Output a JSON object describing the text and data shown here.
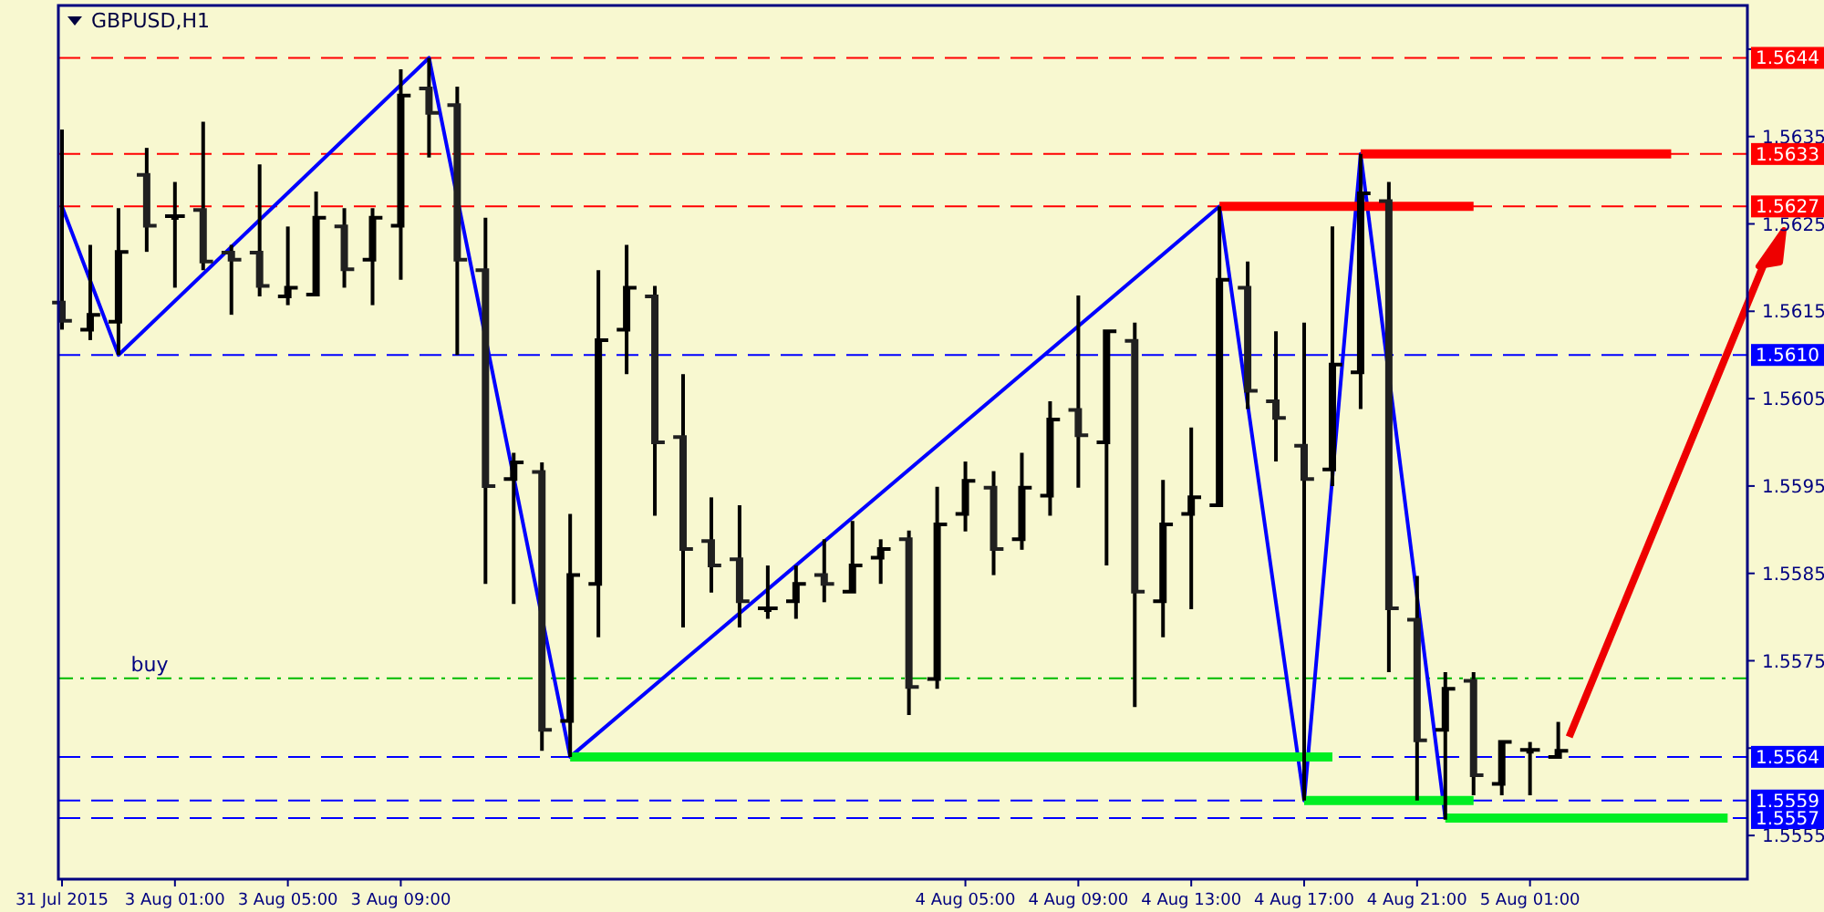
{
  "chart_data": {
    "type": "candlestick",
    "title": "GBPUSD,H1",
    "categories": [
      "31 Jul 2015",
      null,
      null,
      null,
      "3 Aug 01:00",
      null,
      null,
      null,
      "3 Aug 05:00",
      null,
      null,
      null,
      "3 Aug 09:00",
      null,
      null,
      null,
      null,
      null,
      null,
      null,
      null,
      null,
      null,
      null,
      null,
      null,
      null,
      null,
      null,
      null,
      null,
      null,
      "4 Aug 05:00",
      null,
      null,
      null,
      "4 Aug 09:00",
      null,
      null,
      null,
      "4 Aug 13:00",
      null,
      null,
      null,
      "4 Aug 17:00",
      null,
      null,
      null,
      "4 Aug 21:00",
      null,
      null,
      null,
      "5 Aug 01:00",
      null,
      null,
      null,
      null,
      null,
      null,
      null
    ],
    "ohlc": [
      [
        1.5616,
        1.56358,
        1.56129,
        1.56139
      ],
      [
        1.56129,
        1.56226,
        1.56117,
        1.56146
      ],
      [
        1.56138,
        1.56268,
        1.561,
        1.56218
      ],
      [
        1.56306,
        1.56337,
        1.56218,
        1.56248
      ],
      [
        1.56259,
        1.56298,
        1.56177,
        1.56259
      ],
      [
        1.56266,
        1.56367,
        1.56197,
        1.56207
      ],
      [
        1.56217,
        1.56226,
        1.56146,
        1.56209
      ],
      [
        1.56217,
        1.56318,
        1.56167,
        1.56179
      ],
      [
        1.56167,
        1.56247,
        1.56157,
        1.56177
      ],
      [
        1.56169,
        1.56287,
        1.56169,
        1.56257
      ],
      [
        1.56247,
        1.56268,
        1.56177,
        1.56198
      ],
      [
        1.56209,
        1.56268,
        1.56157,
        1.56257
      ],
      [
        1.56248,
        1.56427,
        1.56186,
        1.56397
      ],
      [
        1.56405,
        1.5644,
        1.56326,
        1.56377
      ],
      [
        1.56386,
        1.56407,
        1.561,
        1.56209
      ],
      [
        1.56197,
        1.56257,
        1.55838,
        1.5595
      ],
      [
        1.55958,
        1.55988,
        1.55815,
        1.55977
      ],
      [
        1.55966,
        1.55977,
        1.55647,
        1.55671
      ],
      [
        1.55681,
        1.55918,
        1.5564,
        1.55848
      ],
      [
        1.55838,
        1.56197,
        1.55777,
        1.56117
      ],
      [
        1.56129,
        1.56226,
        1.56078,
        1.56177
      ],
      [
        1.56167,
        1.56179,
        1.55916,
        1.56
      ],
      [
        1.56006,
        1.56078,
        1.55788,
        1.55878
      ],
      [
        1.55887,
        1.55937,
        1.55828,
        1.55859
      ],
      [
        1.55866,
        1.55928,
        1.55788,
        1.55818
      ],
      [
        1.5581,
        1.55859,
        1.55798,
        1.5581
      ],
      [
        1.55818,
        1.55859,
        1.55798,
        1.55838
      ],
      [
        1.55848,
        1.55889,
        1.55817,
        1.55838
      ],
      [
        1.55829,
        1.5591,
        1.55828,
        1.55859
      ],
      [
        1.55868,
        1.55889,
        1.55838,
        1.55878
      ],
      [
        1.55889,
        1.55899,
        1.55688,
        1.5572
      ],
      [
        1.55729,
        1.55949,
        1.55718,
        1.55906
      ],
      [
        1.55918,
        1.55978,
        1.55898,
        1.55956
      ],
      [
        1.55948,
        1.55967,
        1.55848,
        1.55878
      ],
      [
        1.55889,
        1.55988,
        1.55877,
        1.55948
      ],
      [
        1.55939,
        1.56047,
        1.55916,
        1.56026
      ],
      [
        1.56037,
        1.56168,
        1.55948,
        1.56008
      ],
      [
        1.56,
        1.56127,
        1.55859,
        1.56127
      ],
      [
        1.56116,
        1.56137,
        1.55697,
        1.55829
      ],
      [
        1.55818,
        1.55957,
        1.55777,
        1.55906
      ],
      [
        1.55918,
        1.56017,
        1.55809,
        1.55937
      ],
      [
        1.55928,
        1.5627,
        1.55928,
        1.56186
      ],
      [
        1.56177,
        1.56207,
        1.56038,
        1.56059
      ],
      [
        1.56047,
        1.56127,
        1.55978,
        1.56028
      ],
      [
        1.55996,
        1.56137,
        1.5559,
        1.55958
      ],
      [
        1.55969,
        1.56247,
        1.5595,
        1.56089
      ],
      [
        1.5608,
        1.5633,
        1.56038,
        1.56285
      ],
      [
        1.56276,
        1.56298,
        1.55737,
        1.5581
      ],
      [
        1.55797,
        1.55847,
        1.5559,
        1.55659
      ],
      [
        1.55671,
        1.55737,
        1.55568,
        1.55718
      ],
      [
        1.55727,
        1.55737,
        1.55596,
        1.55619
      ],
      [
        1.55609,
        1.55657,
        1.55596,
        1.55657
      ],
      [
        1.55648,
        1.55657,
        1.55596,
        1.55648
      ],
      [
        1.5564,
        1.5568,
        1.5564,
        1.55647
      ],
      null,
      null,
      null,
      null,
      null,
      null
    ],
    "series": [
      {
        "type": "line",
        "color": "#0000ff",
        "values": [
          1.5627,
          null,
          1.561,
          null,
          null,
          null,
          null,
          null,
          null,
          null,
          null,
          null,
          null,
          1.5644,
          null,
          null,
          null,
          null,
          1.5564,
          null,
          null,
          null,
          null,
          null,
          null,
          null,
          null,
          null,
          null,
          null,
          null,
          null,
          null,
          null,
          null,
          null,
          null,
          null,
          null,
          null,
          null,
          1.5627,
          null,
          null,
          1.5559,
          null,
          1.5633,
          null,
          null,
          1.5557,
          null,
          null,
          null,
          null,
          null,
          null,
          null,
          null,
          null,
          null
        ]
      },
      {
        "type": "line",
        "color": "#ff0000",
        "values": [
          null,
          null,
          null,
          null,
          null,
          null,
          null,
          null,
          null,
          null,
          null,
          null,
          null,
          null,
          null,
          null,
          null,
          null,
          null,
          null,
          null,
          null,
          null,
          null,
          null,
          null,
          null,
          null,
          null,
          null,
          null,
          null,
          null,
          null,
          null,
          null,
          null,
          null,
          null,
          null,
          null,
          1.5627,
          1.5627,
          1.5627,
          1.5627,
          1.5627,
          1.5627,
          1.5627,
          1.5627,
          1.5627,
          1.5627,
          null,
          null,
          null,
          null,
          null,
          null,
          null,
          null,
          null
        ]
      },
      {
        "type": "line",
        "color": "#ff0000",
        "values": [
          null,
          null,
          null,
          null,
          null,
          null,
          null,
          null,
          null,
          null,
          null,
          null,
          null,
          null,
          null,
          null,
          null,
          null,
          null,
          null,
          null,
          null,
          null,
          null,
          null,
          null,
          null,
          null,
          null,
          null,
          null,
          null,
          null,
          null,
          null,
          null,
          null,
          null,
          null,
          null,
          null,
          null,
          null,
          null,
          null,
          null,
          1.5633,
          1.5633,
          1.5633,
          1.5633,
          1.5633,
          1.5633,
          1.5633,
          1.5633,
          1.5633,
          1.5633,
          1.5633,
          1.5633,
          null,
          null
        ]
      },
      {
        "type": "line",
        "color": "#00ee22",
        "values": [
          null,
          null,
          null,
          null,
          null,
          null,
          null,
          null,
          null,
          null,
          null,
          null,
          null,
          null,
          null,
          null,
          null,
          null,
          1.5564,
          1.5564,
          1.5564,
          1.5564,
          1.5564,
          1.5564,
          1.5564,
          1.5564,
          1.5564,
          1.5564,
          1.5564,
          1.5564,
          1.5564,
          1.5564,
          1.5564,
          1.5564,
          1.5564,
          1.5564,
          1.5564,
          1.5564,
          1.5564,
          1.5564,
          1.5564,
          1.5564,
          1.5564,
          1.5564,
          1.5564,
          1.5564,
          null,
          null,
          null,
          null,
          null,
          null,
          null,
          null,
          null,
          null,
          null,
          null,
          null,
          null
        ]
      },
      {
        "type": "line",
        "color": "#00ee22",
        "values": [
          null,
          null,
          null,
          null,
          null,
          null,
          null,
          null,
          null,
          null,
          null,
          null,
          null,
          null,
          null,
          null,
          null,
          null,
          null,
          null,
          null,
          null,
          null,
          null,
          null,
          null,
          null,
          null,
          null,
          null,
          null,
          null,
          null,
          null,
          null,
          null,
          null,
          null,
          null,
          null,
          null,
          null,
          null,
          null,
          1.5559,
          1.5559,
          1.5559,
          1.5559,
          1.5559,
          1.5559,
          1.5559,
          null,
          null,
          null,
          null,
          null,
          null,
          null,
          null,
          null
        ]
      },
      {
        "type": "line",
        "color": "#00ee22",
        "values": [
          null,
          null,
          null,
          null,
          null,
          null,
          null,
          null,
          null,
          null,
          null,
          null,
          null,
          null,
          null,
          null,
          null,
          null,
          null,
          null,
          null,
          null,
          null,
          null,
          null,
          null,
          null,
          null,
          null,
          null,
          null,
          null,
          null,
          null,
          null,
          null,
          null,
          null,
          null,
          null,
          null,
          null,
          null,
          null,
          null,
          null,
          null,
          null,
          null,
          1.5557,
          1.5557,
          1.5557,
          1.5557,
          1.5557,
          1.5557,
          1.5557,
          1.5557,
          1.5557,
          1.5557,
          1.5557
        ]
      }
    ],
    "ylim": [
      1.555,
      1.565
    ],
    "yticks": [
      {
        "value": 1.5645,
        "label": null
      },
      1.5635,
      1.5625,
      1.5615,
      1.5605,
      1.5595,
      1.5585,
      1.5575,
      {
        "value": 1.5565,
        "label": null
      },
      1.5555
    ],
    "ref_lines": [
      {
        "axis": "y",
        "value": 1.5644,
        "label": "1.5644",
        "color": "#ff0000",
        "line_style": "dashed"
      },
      {
        "axis": "y",
        "value": 1.5633,
        "label": "1.5633",
        "color": "#ff0000",
        "line_style": "dashed"
      },
      {
        "axis": "y",
        "value": 1.5627,
        "label": "1.5627",
        "color": "#ff0000",
        "line_style": "dashed"
      },
      {
        "axis": "y",
        "value": 1.561,
        "label": "1.5610",
        "color": "#0000ff",
        "line_style": "dashed"
      },
      {
        "axis": "y",
        "value": 1.5564,
        "label": "1.5564",
        "color": "#0000ff",
        "line_style": "dashed"
      },
      {
        "axis": "y",
        "value": 1.5559,
        "label": "1.5559",
        "color": "#0000ff",
        "line_style": "dashed"
      },
      {
        "axis": "y",
        "value": 1.5557,
        "label": "1.5557",
        "color": "#0000ff",
        "line_style": "dashed"
      },
      {
        "axis": "y",
        "value": 1.5573,
        "color": "#00bb00",
        "line_style": "dotted"
      }
    ],
    "annotations": [
      {
        "text": "buy",
        "y": 1.5573
      }
    ],
    "grid": false
  }
}
